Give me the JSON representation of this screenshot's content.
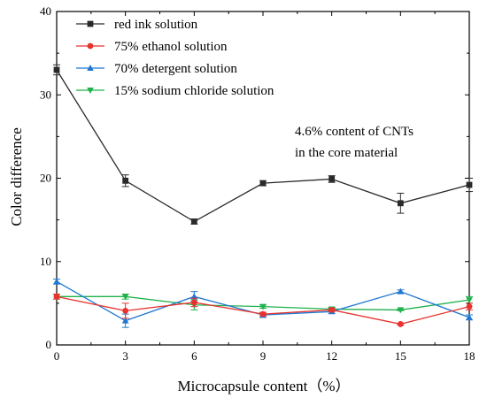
{
  "chart_data": {
    "type": "line",
    "title": "",
    "xlabel": "Microcapsule content（%）",
    "ylabel": "Color difference",
    "x": [
      0,
      3,
      6,
      9,
      12,
      15,
      18
    ],
    "xlim": [
      0,
      18
    ],
    "ylim": [
      0,
      40
    ],
    "xticks": [
      "0",
      "3",
      "6",
      "9",
      "12",
      "15",
      "18"
    ],
    "yticks": [
      "0",
      "10",
      "20",
      "30",
      "40"
    ],
    "grid": false,
    "legend_position": "top-left",
    "series": [
      {
        "name": "red ink solution",
        "color": "#2a2a2a",
        "marker": "square",
        "values": [
          33.0,
          19.7,
          14.8,
          19.4,
          19.9,
          17.0,
          19.2
        ],
        "errors": [
          0.6,
          0.7,
          0.3,
          0.3,
          0.4,
          1.2,
          0.8
        ]
      },
      {
        "name": "75% ethanol solution",
        "color": "#e8322d",
        "marker": "circle",
        "values": [
          5.8,
          4.1,
          5.1,
          3.7,
          4.2,
          2.5,
          4.6
        ],
        "errors": [
          0.3,
          0.9,
          0.5,
          0.2,
          0.2,
          0.1,
          0.4
        ]
      },
      {
        "name": "70% detergent solution",
        "color": "#1e78d2",
        "marker": "triangle-up",
        "values": [
          7.6,
          2.9,
          5.8,
          3.6,
          4.0,
          6.4,
          3.3
        ],
        "errors": [
          0.3,
          0.8,
          0.6,
          0.3,
          0.2,
          0.2,
          0.3
        ]
      },
      {
        "name": "15% sodium chloride solution",
        "color": "#1fb24b",
        "marker": "triangle-down",
        "values": [
          5.8,
          5.8,
          4.8,
          4.6,
          4.3,
          4.2,
          5.4
        ],
        "errors": [
          0.3,
          0.3,
          0.6,
          0.2,
          0.2,
          0.1,
          0.4
        ]
      }
    ],
    "annotations": [
      "4.6% content of CNTs",
      "in the core material"
    ]
  }
}
